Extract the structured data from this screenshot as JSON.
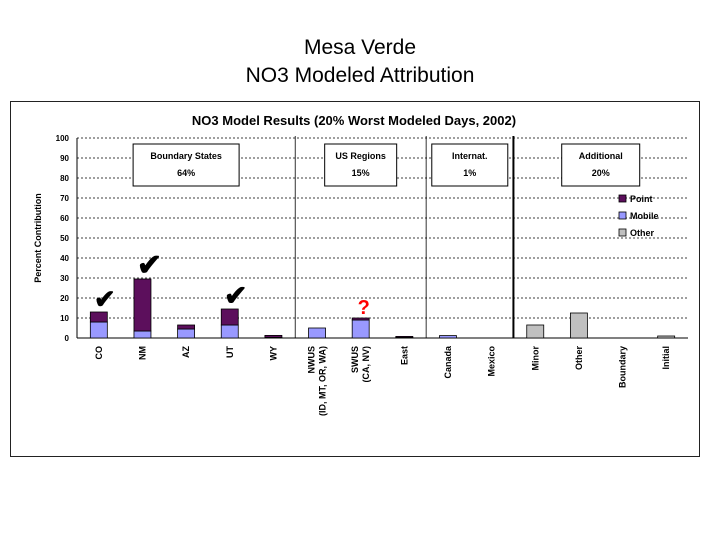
{
  "slide": {
    "title_line1": "Mesa Verde",
    "title_line2": "NO3 Modeled Attribution"
  },
  "chart_data": {
    "type": "bar",
    "stacked": true,
    "title": "NO3 Model Results (20% Worst Modeled Days, 2002)",
    "ylabel": "Percent Contribution",
    "xlabel": "",
    "ylim": [
      0,
      100
    ],
    "yticks": [
      0,
      10,
      20,
      30,
      40,
      50,
      60,
      70,
      80,
      90,
      100
    ],
    "grid": true,
    "legend_position": "right",
    "categories": [
      [
        "CO"
      ],
      [
        "NM"
      ],
      [
        "AZ"
      ],
      [
        "UT"
      ],
      [
        "WY"
      ],
      [
        "NWUS",
        "(ID, MT, OR, WA)"
      ],
      [
        "SWUS",
        "(CA, NV)"
      ],
      [
        "East"
      ],
      [
        "Canada"
      ],
      [
        "Mexico"
      ],
      [
        "Minor"
      ],
      [
        "Other"
      ],
      [
        "Boundary"
      ],
      [
        "Initial"
      ]
    ],
    "series": [
      {
        "name": "Point",
        "color": "#5c0f5c",
        "values": [
          5,
          26,
          2,
          8,
          1,
          0,
          1,
          0.5,
          0,
          0,
          0,
          0,
          0,
          0
        ]
      },
      {
        "name": "Mobile",
        "color": "#9999ff",
        "values": [
          8,
          3.5,
          4.5,
          6.5,
          0.3,
          5,
          9,
          0.3,
          1.2,
          0,
          0,
          0,
          0,
          0
        ]
      },
      {
        "name": "Other",
        "color": "#c0c0c0",
        "values": [
          0,
          0,
          0,
          0,
          0,
          0,
          0,
          0,
          0,
          0,
          6.5,
          12.5,
          0,
          1
        ]
      }
    ],
    "group_boxes": [
      {
        "label": "Boundary States",
        "value": "64%"
      },
      {
        "label": "US Regions",
        "value": "15%"
      },
      {
        "label": "Internat.",
        "value": "1%"
      },
      {
        "label": "Additional",
        "value": "20%"
      }
    ],
    "annotations": [
      {
        "text": "✔",
        "color": "#000000",
        "category_index": 0
      },
      {
        "text": "✔",
        "color": "#000000",
        "category_index": 1
      },
      {
        "text": "✔",
        "color": "#000000",
        "category_index": 3
      },
      {
        "text": "?",
        "color": "#ff0000",
        "category_index": 6
      }
    ]
  }
}
